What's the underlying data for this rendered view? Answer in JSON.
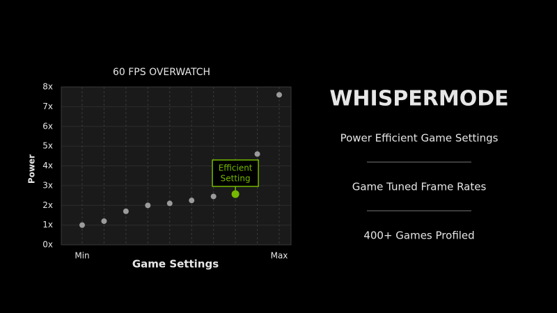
{
  "chart_data": {
    "type": "scatter",
    "title": "60 FPS OVERWATCH",
    "y_label": "Power",
    "x_label": "Game Settings",
    "categories": [
      "Min",
      null,
      null,
      null,
      null,
      null,
      null,
      null,
      null,
      "Max"
    ],
    "values": [
      1.0,
      1.2,
      1.7,
      2.0,
      2.1,
      2.25,
      2.45,
      2.57,
      4.6,
      7.6
    ],
    "color": "#9b9b9b",
    "highlight_color": "#76b900",
    "highlight_index": 7,
    "annotation": [
      "Efficient",
      "Setting"
    ],
    "ylim": [
      0,
      8
    ],
    "yticks": [
      {
        "value": 0,
        "label": "0x"
      },
      {
        "value": 1,
        "label": "1x"
      },
      {
        "value": 2,
        "label": "2x"
      },
      {
        "value": 3,
        "label": "3x"
      },
      {
        "value": 4,
        "label": "4x"
      },
      {
        "value": 5,
        "label": "5x"
      },
      {
        "value": 6,
        "label": "6x"
      },
      {
        "value": 7,
        "label": "7x"
      },
      {
        "value": 8,
        "label": "8x"
      }
    ],
    "grid": true
  },
  "panel": {
    "title": "WHISPERMODE",
    "items": [
      "Power Efficient Game Settings",
      "Game Tuned Frame Rates",
      "400+ Games Profiled"
    ]
  }
}
